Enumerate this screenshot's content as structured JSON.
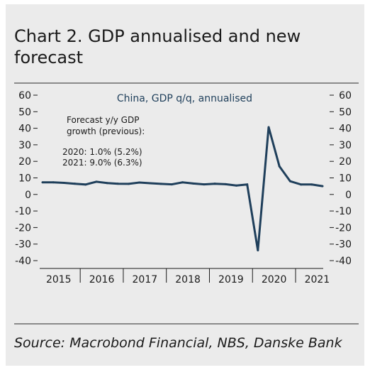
{
  "header": {
    "title": "Chart 2. GDP annualised and new forecast"
  },
  "footer": {
    "source": "Source: Macrobond Financial, NBS, Danske Bank"
  },
  "colors": {
    "panel_background": "#ebebeb",
    "line": "#1f3f5b",
    "text": "#1a1a1a",
    "series_label": "#1f3f5b"
  },
  "chart_data": {
    "type": "line",
    "title": "",
    "xlabel": "",
    "ylabel": "",
    "ylim": [
      -40,
      60
    ],
    "yticks": [
      60,
      50,
      40,
      30,
      20,
      10,
      0,
      -10,
      -20,
      -30,
      -40
    ],
    "x_categories": [
      "2015",
      "2016",
      "2017",
      "2018",
      "2019",
      "2020",
      "2021"
    ],
    "series": [
      {
        "name": "China, GDP q/q, annualised",
        "x": [
          "2015Q1",
          "2015Q2",
          "2015Q3",
          "2015Q4",
          "2016Q1",
          "2016Q2",
          "2016Q3",
          "2016Q4",
          "2017Q1",
          "2017Q2",
          "2017Q3",
          "2017Q4",
          "2018Q1",
          "2018Q2",
          "2018Q3",
          "2018Q4",
          "2019Q1",
          "2019Q2",
          "2019Q3",
          "2019Q4",
          "2020Q1",
          "2020Q2",
          "2020Q3",
          "2020Q4",
          "2021Q1",
          "2021Q2",
          "2021Q3"
        ],
        "values": [
          7.3,
          7.3,
          7.0,
          6.5,
          6.0,
          7.7,
          6.9,
          6.5,
          6.4,
          7.2,
          6.8,
          6.4,
          6.1,
          7.3,
          6.6,
          6.1,
          6.5,
          6.2,
          5.4,
          6.0,
          -33.8,
          40.7,
          17.0,
          8.0,
          6.0,
          6.0,
          5.0
        ]
      }
    ],
    "annotation": {
      "heading": "Forecast y/y GDP growth (previous):",
      "line1": "2020: 1.0% (5.2%)",
      "line2": "2021: 9.0% (6.3%)"
    },
    "grid": false,
    "legend": "top-right"
  }
}
